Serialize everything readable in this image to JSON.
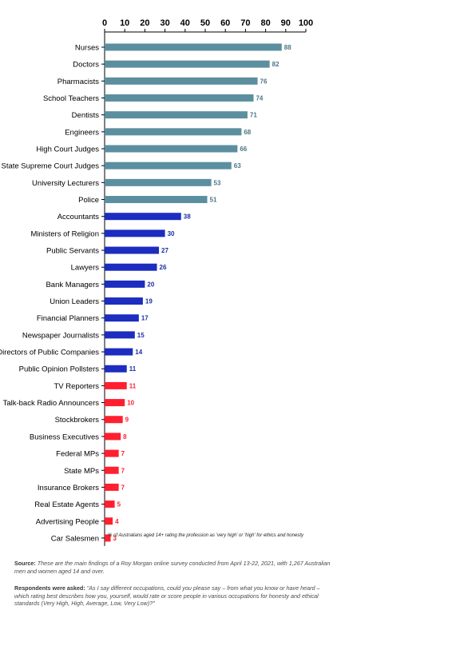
{
  "chart_data": {
    "type": "bar",
    "orientation": "horizontal",
    "categories": [
      "Nurses",
      "Doctors",
      "Pharmacists",
      "School Teachers",
      "Dentists",
      "Engineers",
      "High Court Judges",
      "State Supreme Court Judges",
      "University Lecturers",
      "Police",
      "Accountants",
      "Ministers of Religion",
      "Public Servants",
      "Lawyers",
      "Bank Managers",
      "Union Leaders",
      "Financial Planners",
      "Newspaper Journalists",
      "Directors of Public Companies",
      "Public Opinion Pollsters",
      "TV Reporters",
      "Talk-back Radio Announcers",
      "Stockbrokers",
      "Business Executives",
      "Federal MPs",
      "State MPs",
      "Insurance Brokers",
      "Real Estate Agents",
      "Advertising People",
      "Car Salesmen"
    ],
    "values": [
      88,
      82,
      76,
      74,
      71,
      68,
      66,
      63,
      53,
      51,
      38,
      30,
      27,
      26,
      20,
      19,
      17,
      15,
      14,
      11,
      11,
      10,
      9,
      8,
      7,
      7,
      7,
      5,
      4,
      3
    ],
    "value_labels": [
      "88",
      "82",
      "76",
      "74",
      "71",
      "68",
      "66",
      "63",
      "53",
      "51",
      "38",
      "30",
      "27",
      "26",
      "20",
      "19",
      "17",
      "15",
      "14",
      "11",
      "11",
      "10",
      "9",
      "8",
      "7",
      "7",
      "7",
      "5",
      "4",
      "3"
    ],
    "bar_colors": [
      "#5b8fa0",
      "#5b8fa0",
      "#5b8fa0",
      "#5b8fa0",
      "#5b8fa0",
      "#5b8fa0",
      "#5b8fa0",
      "#5b8fa0",
      "#5b8fa0",
      "#5b8fa0",
      "#1c2dbf",
      "#1c2dbf",
      "#1c2dbf",
      "#1c2dbf",
      "#1c2dbf",
      "#1c2dbf",
      "#1c2dbf",
      "#1c2dbf",
      "#1c2dbf",
      "#1c2dbf",
      "#ff1f2f",
      "#ff1f2f",
      "#ff1f2f",
      "#ff1f2f",
      "#ff1f2f",
      "#ff1f2f",
      "#ff1f2f",
      "#ff1f2f",
      "#ff1f2f",
      "#ff1f2f"
    ],
    "label_colors": [
      "#4a7686",
      "#4a7686",
      "#4a7686",
      "#4a7686",
      "#4a7686",
      "#4a7686",
      "#4a7686",
      "#4a7686",
      "#4a7686",
      "#4a7686",
      "#1a2fa8",
      "#1a2fa8",
      "#1a2fa8",
      "#1a2fa8",
      "#1a2fa8",
      "#1a2fa8",
      "#1a2fa8",
      "#1a2fa8",
      "#1a2fa8",
      "#1a2fa8",
      "#ff1f2f",
      "#ff1f2f",
      "#ff1f2f",
      "#ff1f2f",
      "#ff1f2f",
      "#ff1f2f",
      "#ff1f2f",
      "#ff1f2f",
      "#ff1f2f",
      "#ff1f2f"
    ],
    "xlim": [
      0,
      100
    ],
    "xticks": [
      0,
      10,
      20,
      30,
      40,
      50,
      60,
      70,
      80,
      90,
      100
    ],
    "axis_position": "top",
    "grid": false,
    "legend": "none",
    "annotation": "% of Australians aged 14+ rating the profession as 'very high' or 'high' for ethics and honesty"
  },
  "footer": {
    "source_label": "Source:",
    "source_text": "These are the main findings of a Roy Morgan online survey conducted from April 13-22, 2021, with 1,267 Australian men and women aged 14 and over.",
    "question_label": "Respondents were asked:",
    "question_text": "\"As I say different occupations, could you please say – from what you know or have heard – which rating best describes how you, yourself, would rate or score people in various occupations for honesty and ethical standards (Very High, High, Average, Low, Very Low)?\""
  }
}
